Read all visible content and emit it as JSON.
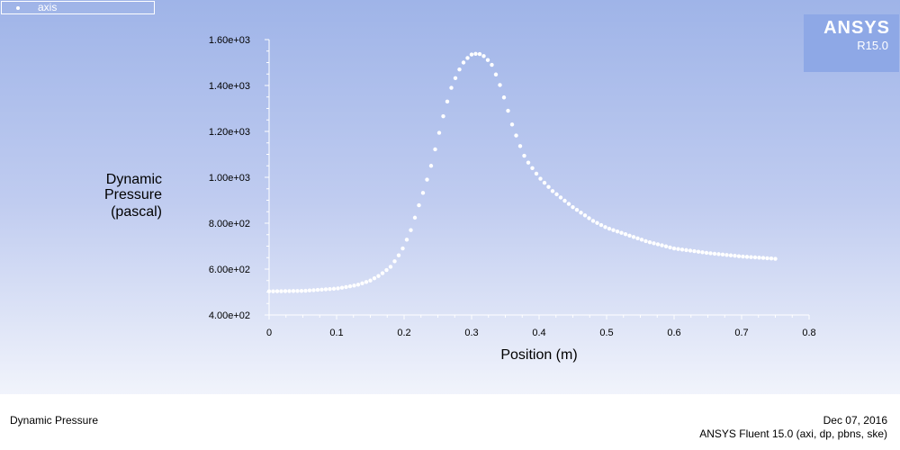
{
  "legend": {
    "label": "axis"
  },
  "logo": {
    "brand": "ANSYS",
    "version": "R15.0"
  },
  "footer": {
    "plot_name": "Dynamic Pressure",
    "date": "Dec 07, 2016",
    "solver_info": "ANSYS Fluent 15.0 (axi, dp, pbns, ske)"
  },
  "colors": {
    "marker": "#ffffff",
    "axis": "#ffffff",
    "background_top": "#9fb4e8",
    "logo_bg": "#8ea8e6"
  },
  "chart_data": {
    "type": "scatter",
    "title": "",
    "xlabel": "Position (m)",
    "ylabel_lines": [
      "Dynamic",
      "Pressure",
      "(pascal)"
    ],
    "xlim": [
      0,
      0.8
    ],
    "ylim": [
      400,
      1600
    ],
    "x_ticks": [
      {
        "value": 0,
        "label": "0"
      },
      {
        "value": 0.1,
        "label": "0.1"
      },
      {
        "value": 0.2,
        "label": "0.2"
      },
      {
        "value": 0.3,
        "label": "0.3"
      },
      {
        "value": 0.4,
        "label": "0.4"
      },
      {
        "value": 0.5,
        "label": "0.5"
      },
      {
        "value": 0.6,
        "label": "0.6"
      },
      {
        "value": 0.7,
        "label": "0.7"
      },
      {
        "value": 0.8,
        "label": "0.8"
      }
    ],
    "y_ticks": [
      {
        "value": 400,
        "label": "4.00e+02"
      },
      {
        "value": 600,
        "label": "6.00e+02"
      },
      {
        "value": 800,
        "label": "8.00e+02"
      },
      {
        "value": 1000,
        "label": "1.00e+03"
      },
      {
        "value": 1200,
        "label": "1.20e+03"
      },
      {
        "value": 1400,
        "label": "1.40e+03"
      },
      {
        "value": 1600,
        "label": "1.60e+03"
      }
    ],
    "grid": false,
    "legend_position": "top-left",
    "series": [
      {
        "name": "axis",
        "points": [
          [
            0.0,
            503
          ],
          [
            0.05,
            505
          ],
          [
            0.1,
            515
          ],
          [
            0.13,
            530
          ],
          [
            0.15,
            550
          ],
          [
            0.165,
            575
          ],
          [
            0.18,
            610
          ],
          [
            0.19,
            650
          ],
          [
            0.2,
            700
          ],
          [
            0.21,
            770
          ],
          [
            0.22,
            860
          ],
          [
            0.23,
            950
          ],
          [
            0.24,
            1050
          ],
          [
            0.25,
            1170
          ],
          [
            0.26,
            1290
          ],
          [
            0.27,
            1390
          ],
          [
            0.28,
            1460
          ],
          [
            0.29,
            1510
          ],
          [
            0.3,
            1535
          ],
          [
            0.31,
            1540
          ],
          [
            0.32,
            1525
          ],
          [
            0.33,
            1490
          ],
          [
            0.34,
            1420
          ],
          [
            0.35,
            1330
          ],
          [
            0.36,
            1230
          ],
          [
            0.37,
            1150
          ],
          [
            0.38,
            1080
          ],
          [
            0.4,
            1000
          ],
          [
            0.42,
            940
          ],
          [
            0.45,
            870
          ],
          [
            0.48,
            810
          ],
          [
            0.5,
            780
          ],
          [
            0.53,
            750
          ],
          [
            0.56,
            720
          ],
          [
            0.6,
            690
          ],
          [
            0.65,
            670
          ],
          [
            0.7,
            655
          ],
          [
            0.75,
            645
          ]
        ]
      }
    ]
  }
}
